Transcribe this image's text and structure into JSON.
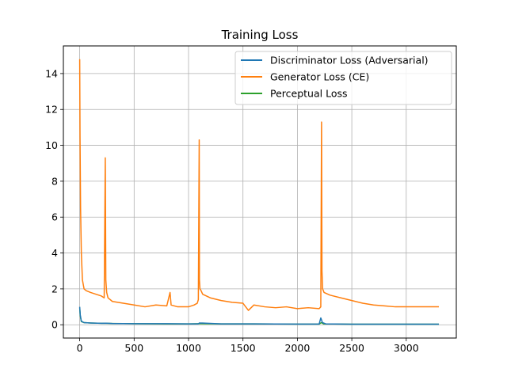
{
  "chart_data": {
    "type": "line",
    "title": "Training Loss",
    "xlabel": "",
    "ylabel": "",
    "xlim": [
      -150,
      3460
    ],
    "ylim": [
      -0.74,
      15.54
    ],
    "xticks": [
      0,
      500,
      1000,
      1500,
      2000,
      2500,
      3000
    ],
    "yticks": [
      0,
      2,
      4,
      6,
      8,
      10,
      12,
      14
    ],
    "grid": true,
    "legend_position": "upper-right",
    "series": [
      {
        "name": "Discriminator Loss (Adversarial)",
        "color": "#1f77b4",
        "x": [
          0,
          5,
          15,
          40,
          100,
          200,
          240,
          300,
          500,
          800,
          1000,
          1090,
          1100,
          1300,
          1600,
          2000,
          2200,
          2215,
          2220,
          2230,
          2260,
          2500,
          3000,
          3300
        ],
        "y": [
          1.0,
          0.55,
          0.2,
          0.12,
          0.1,
          0.08,
          0.09,
          0.07,
          0.06,
          0.06,
          0.05,
          0.05,
          0.1,
          0.05,
          0.05,
          0.04,
          0.04,
          0.38,
          0.3,
          0.12,
          0.05,
          0.03,
          0.03,
          0.03
        ]
      },
      {
        "name": "Generator Loss (CE)",
        "color": "#ff7f0e",
        "x": [
          0,
          3,
          8,
          15,
          25,
          40,
          60,
          100,
          150,
          200,
          225,
          235,
          240,
          248,
          260,
          300,
          400,
          500,
          600,
          700,
          800,
          830,
          840,
          900,
          1000,
          1050,
          1080,
          1090,
          1098,
          1100,
          1105,
          1115,
          1130,
          1200,
          1300,
          1400,
          1500,
          1550,
          1600,
          1700,
          1800,
          1900,
          2000,
          2100,
          2200,
          2215,
          2222,
          2226,
          2232,
          2245,
          2300,
          2400,
          2500,
          2600,
          2700,
          2800,
          2900,
          3000,
          3100,
          3200,
          3300
        ],
        "y": [
          14.8,
          10.5,
          6.5,
          4.0,
          2.5,
          2.0,
          1.9,
          1.8,
          1.7,
          1.6,
          1.5,
          9.3,
          2.5,
          1.8,
          1.5,
          1.3,
          1.2,
          1.1,
          1.0,
          1.1,
          1.05,
          1.8,
          1.1,
          1.0,
          1.0,
          1.1,
          1.2,
          1.4,
          10.3,
          2.5,
          2.0,
          1.9,
          1.7,
          1.5,
          1.35,
          1.25,
          1.2,
          0.8,
          1.1,
          1.0,
          0.95,
          1.0,
          0.9,
          0.95,
          0.9,
          1.0,
          11.3,
          3.0,
          2.0,
          1.8,
          1.65,
          1.5,
          1.35,
          1.2,
          1.1,
          1.05,
          1.0,
          1.0,
          1.0,
          1.0,
          1.0
        ]
      },
      {
        "name": "Perceptual Loss",
        "color": "#2ca02c",
        "x": [
          0,
          5,
          15,
          40,
          100,
          200,
          240,
          300,
          500,
          800,
          1000,
          1100,
          1300,
          1600,
          2000,
          2200,
          2220,
          2240,
          2500,
          3000,
          3300
        ],
        "y": [
          0.95,
          0.5,
          0.18,
          0.12,
          0.1,
          0.08,
          0.08,
          0.07,
          0.06,
          0.05,
          0.05,
          0.06,
          0.05,
          0.05,
          0.04,
          0.04,
          0.12,
          0.05,
          0.03,
          0.03,
          0.03
        ]
      }
    ]
  }
}
